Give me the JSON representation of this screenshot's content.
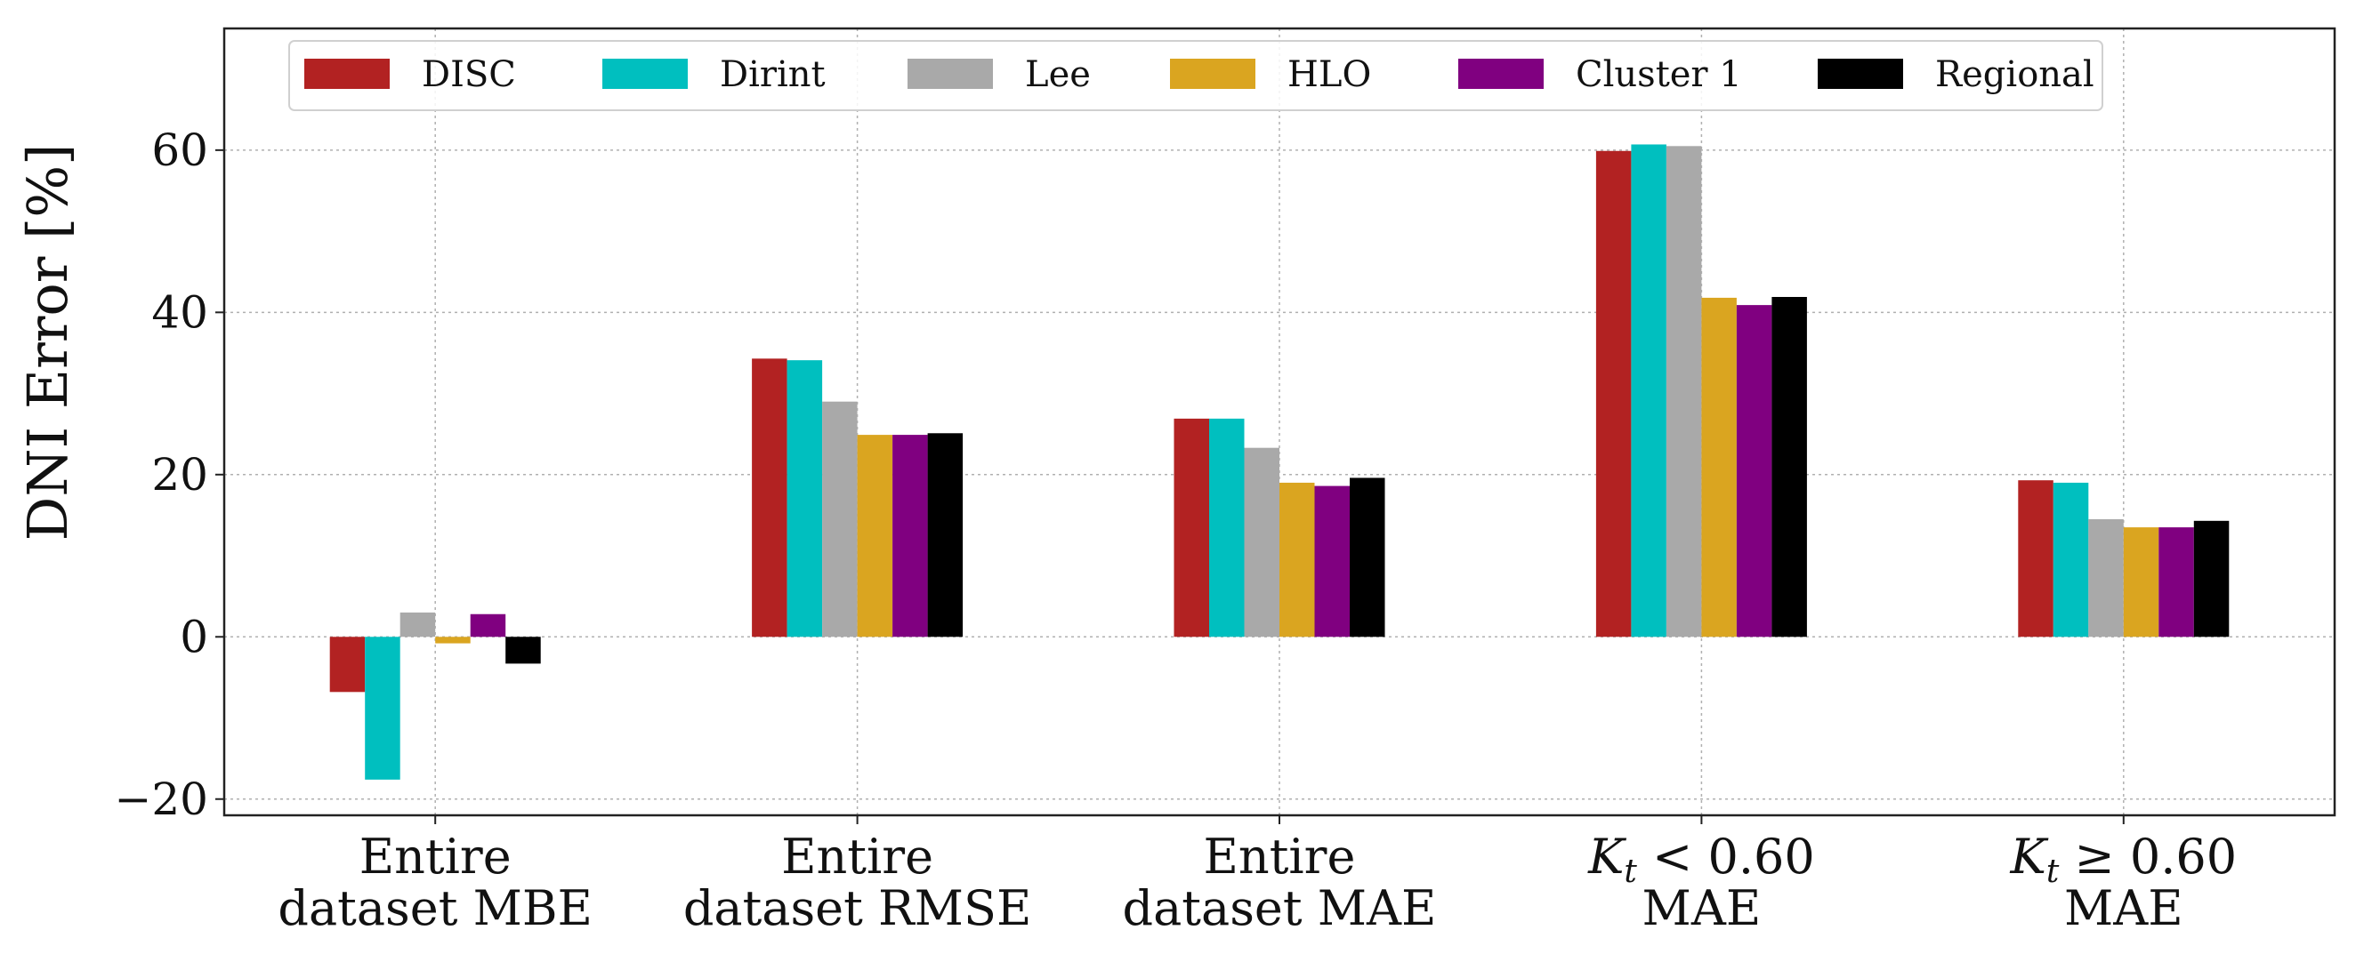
{
  "chart_data": {
    "type": "bar",
    "ylabel": "DNI Error [%]",
    "ylim": [
      -22,
      75
    ],
    "yticks": [
      -20,
      0,
      20,
      40,
      60
    ],
    "ytick_labels": [
      "−20",
      "0",
      "20",
      "40",
      "60"
    ],
    "grid": true,
    "legend_position": "top",
    "categories": [
      {
        "line1": "Entire",
        "line2": "dataset MBE"
      },
      {
        "line1": "Entire",
        "line2": "dataset RMSE"
      },
      {
        "line1": "Entire",
        "line2": "dataset MAE"
      },
      {
        "k": "K",
        "sub": "t",
        "rel": " < 0.60",
        "line2": "MAE"
      },
      {
        "k": "K",
        "sub": "t",
        "rel": " ≥ 0.60",
        "line2": "MAE"
      }
    ],
    "series": [
      {
        "name": "DISC",
        "color": "#b22222",
        "values": [
          -6.8,
          34.3,
          26.9,
          59.9,
          19.3
        ]
      },
      {
        "name": "Dirint",
        "color": "#00bfbf",
        "values": [
          -17.6,
          34.1,
          26.9,
          60.7,
          19.0
        ]
      },
      {
        "name": "Lee",
        "color": "#a9a9a9",
        "values": [
          3.0,
          29.0,
          23.3,
          60.5,
          14.5
        ]
      },
      {
        "name": "HLO",
        "color": "#daa520",
        "values": [
          -0.8,
          24.9,
          19.0,
          41.8,
          13.5
        ]
      },
      {
        "name": "Cluster 1",
        "color": "#800080",
        "values": [
          2.8,
          24.9,
          18.6,
          40.9,
          13.5
        ]
      },
      {
        "name": "Regional",
        "color": "#000000",
        "values": [
          -3.3,
          25.1,
          19.6,
          41.9,
          14.3
        ]
      }
    ]
  }
}
